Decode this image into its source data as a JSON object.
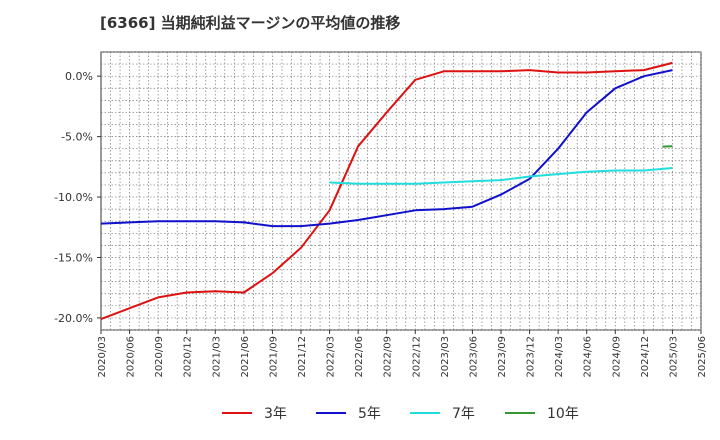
{
  "chart_data": {
    "type": "line",
    "title": "[6366]  当期純利益マージンの平均値の推移",
    "xlabel": "",
    "ylabel": "",
    "ylim": [
      -21.0,
      2.0
    ],
    "y_ticks": [
      0.0,
      -5.0,
      -10.0,
      -15.0,
      -20.0
    ],
    "y_tick_labels": [
      "0.0%",
      "-5.0%",
      "-10.0%",
      "-15.0%",
      "-20.0%"
    ],
    "x_tick_labels": [
      "2020/03",
      "2020/06",
      "2020/09",
      "2020/12",
      "2021/03",
      "2021/06",
      "2021/09",
      "2021/12",
      "2022/03",
      "2022/06",
      "2022/09",
      "2022/12",
      "2023/03",
      "2023/06",
      "2023/09",
      "2023/12",
      "2024/03",
      "2024/06",
      "2024/09",
      "2024/12",
      "2025/03",
      "2025/06"
    ],
    "grid": true,
    "legend_position": "bottom",
    "series": [
      {
        "name": "3年",
        "color": "#dd1111",
        "start_index": 0,
        "values": [
          -20.1,
          -19.2,
          -18.3,
          -17.9,
          -17.8,
          -17.9,
          -16.3,
          -14.2,
          -11.1,
          -5.8,
          -3.0,
          -0.3,
          0.4,
          0.4,
          0.4,
          0.5,
          0.3,
          0.3,
          0.4,
          0.5,
          1.1
        ]
      },
      {
        "name": "5年",
        "color": "#1111cc",
        "start_index": 0,
        "values": [
          -12.2,
          -12.1,
          -12.0,
          -12.0,
          -12.0,
          -12.1,
          -12.4,
          -12.4,
          -12.2,
          -11.9,
          -11.5,
          -11.1,
          -11.0,
          -10.8,
          -9.8,
          -8.5,
          -6.0,
          -3.0,
          -1.0,
          0.0,
          0.5
        ]
      },
      {
        "name": "7年",
        "color": "#22dddd",
        "start_index": 8,
        "values": [
          -8.8,
          -8.9,
          -8.9,
          -8.9,
          -8.8,
          -8.7,
          -8.6,
          -8.3,
          -8.1,
          -7.9,
          -7.8,
          -7.8,
          -7.6
        ]
      },
      {
        "name": "10年",
        "color": "#339933",
        "start_index": 20,
        "values": [
          -5.8
        ]
      }
    ]
  }
}
